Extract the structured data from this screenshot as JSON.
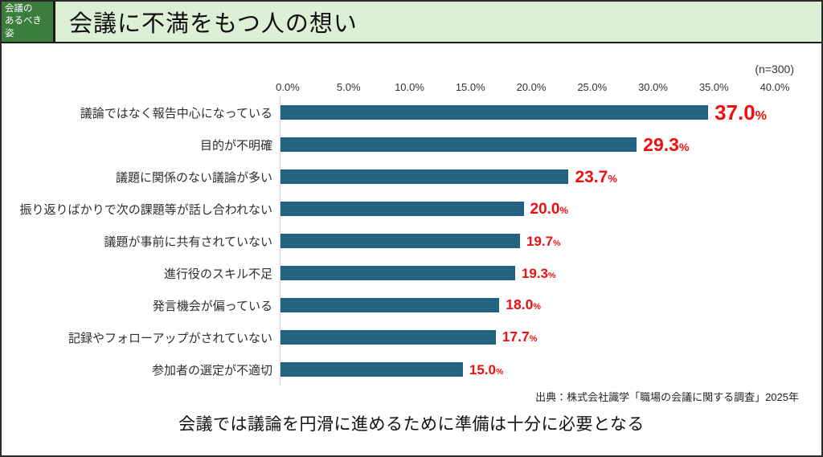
{
  "header": {
    "badge_label": "会議の\nあるべき姿",
    "title": "会議に不満をもつ人の想い",
    "badge_bg": "#3a7d3c",
    "banner_bg": "#dcf0d6"
  },
  "chart_data": {
    "type": "bar",
    "orientation": "horizontal",
    "title": "会議に不満をもつ人の想い",
    "sample_note": "(n=300)",
    "categories": [
      "議論ではなく報告中心になっている",
      "目的が不明確",
      "議題に関係のない議論が多い",
      "振り返りばかりで次の課題等が話し合われない",
      "議題が事前に共有されていない",
      "進行役のスキル不足",
      "発言機会が偏っている",
      "記録やフォローアップがされていない",
      "参加者の選定が不適切"
    ],
    "values": [
      37.0,
      29.3,
      23.7,
      20.0,
      19.7,
      19.3,
      18.0,
      17.7,
      15.0
    ],
    "value_suffix": "%",
    "x_ticks": [
      "0.0%",
      "5.0%",
      "10.0%",
      "15.0%",
      "20.0%",
      "25.0%",
      "30.0%",
      "35.0%",
      "40.0%"
    ],
    "xlim": [
      0,
      40
    ],
    "grid": false,
    "legend": false,
    "bar_color": "#216380",
    "value_label_color": "#ee0f0f"
  },
  "footer": {
    "source": "出典：株式会社識学「職場の会議に関する調査」2025年",
    "conclusion": "会議では議論を円滑に進めるために準備は十分に必要となる"
  }
}
